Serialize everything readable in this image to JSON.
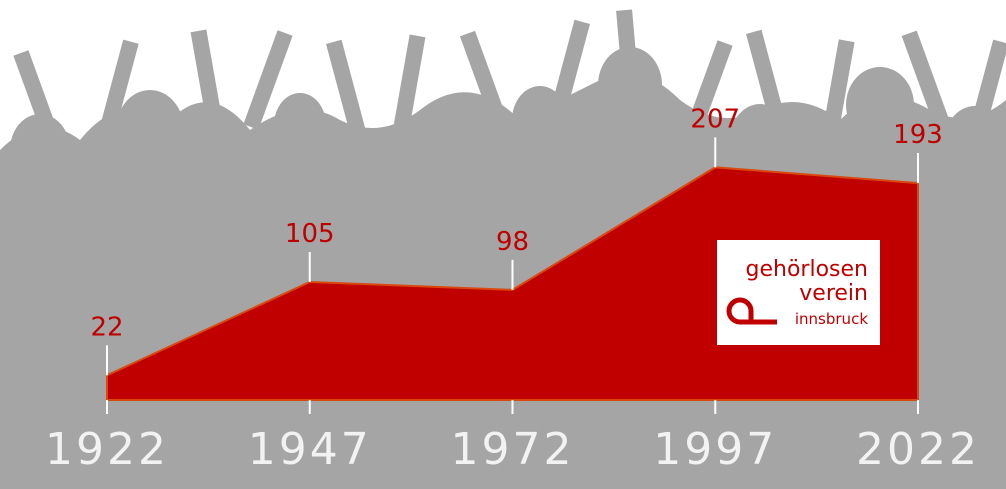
{
  "chart_data": {
    "type": "area",
    "x": [
      1922,
      1947,
      1972,
      1997,
      2022
    ],
    "values": [
      22,
      105,
      98,
      207,
      193
    ],
    "color": "#c00000"
  },
  "logo": {
    "line1": "gehörlosen",
    "line2": "verein",
    "line3": "innsbruck"
  }
}
